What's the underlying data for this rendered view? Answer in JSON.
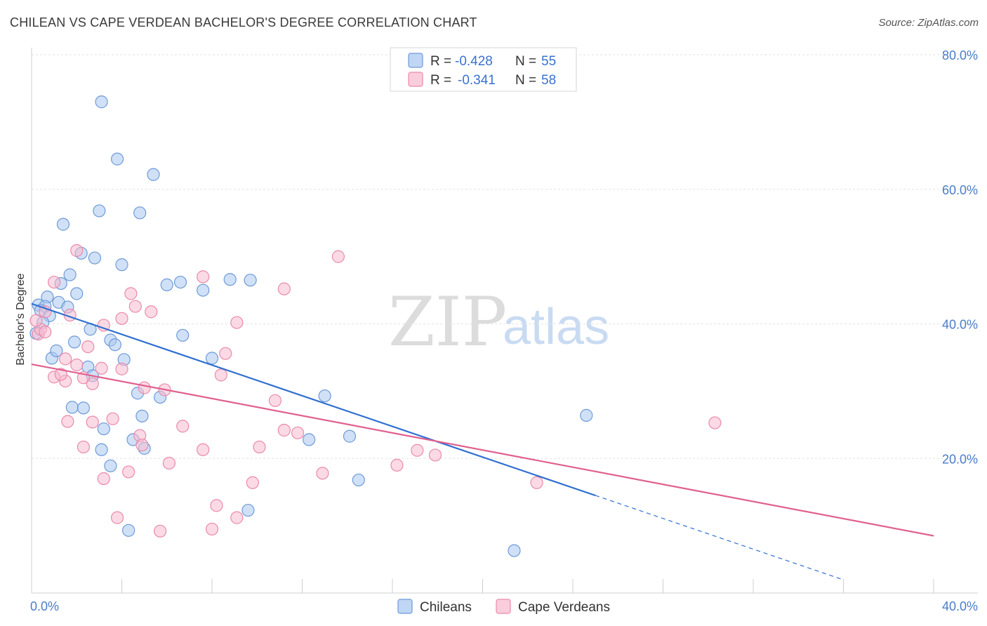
{
  "title": "CHILEAN VS CAPE VERDEAN BACHELOR'S DEGREE CORRELATION CHART",
  "source": "Source: ZipAtlas.com",
  "watermark": {
    "zip": "ZIP",
    "atlas": "atlas"
  },
  "colors": {
    "chileans_fill": "#aac8f0",
    "chileans_stroke": "#6f9ad6",
    "chileans_line": "#2f6fd0",
    "cape_fill": "#f7bcd0",
    "cape_stroke": "#e98aaa",
    "cape_line": "#e0608e",
    "tick_label": "#4a7cc9",
    "grid": "#e2e2e2"
  },
  "stats_legend": [
    {
      "r_label": "R =",
      "r_value": "-0.428",
      "n_label": "N =",
      "n_value": "55"
    },
    {
      "r_label": "R =",
      "r_value": "-0.341",
      "n_label": "N =",
      "n_value": "58"
    }
  ],
  "chart_data": {
    "type": "scatter",
    "title": "CHILEAN VS CAPE VERDEAN BACHELOR'S DEGREE CORRELATION CHART",
    "xlabel": "",
    "ylabel": "Bachelor's Degree",
    "xlim": [
      0,
      40
    ],
    "ylim": [
      0,
      80
    ],
    "x_tick_labels": [
      "0.0%",
      "40.0%"
    ],
    "y_ticks": [
      20,
      40,
      60,
      80
    ],
    "y_tick_labels": [
      "20.0%",
      "40.0%",
      "60.0%",
      "80.0%"
    ],
    "grid": true,
    "legend_position": "top-center",
    "series": [
      {
        "name": "Chileans",
        "r": -0.428,
        "n": 55,
        "trend": {
          "x0": 0.0,
          "y0": 43.0,
          "x1": 25.0,
          "y1": 14.5,
          "dashed_to_x": 36.0
        },
        "points": [
          [
            3.1,
            73.0
          ],
          [
            3.8,
            64.5
          ],
          [
            5.4,
            62.2
          ],
          [
            3.0,
            56.8
          ],
          [
            4.8,
            56.5
          ],
          [
            1.4,
            54.8
          ],
          [
            2.2,
            50.5
          ],
          [
            2.8,
            49.8
          ],
          [
            4.0,
            48.8
          ],
          [
            1.7,
            47.3
          ],
          [
            1.3,
            46.0
          ],
          [
            6.0,
            45.8
          ],
          [
            6.6,
            46.2
          ],
          [
            8.8,
            46.6
          ],
          [
            9.7,
            46.5
          ],
          [
            7.6,
            45.0
          ],
          [
            2.0,
            44.5
          ],
          [
            0.7,
            44.0
          ],
          [
            0.3,
            42.8
          ],
          [
            1.2,
            43.2
          ],
          [
            0.6,
            42.6
          ],
          [
            0.4,
            42.0
          ],
          [
            1.6,
            42.5
          ],
          [
            0.8,
            41.2
          ],
          [
            0.5,
            40.2
          ],
          [
            2.6,
            39.2
          ],
          [
            6.7,
            38.3
          ],
          [
            3.5,
            37.6
          ],
          [
            1.9,
            37.3
          ],
          [
            3.7,
            36.9
          ],
          [
            0.2,
            38.6
          ],
          [
            0.9,
            34.9
          ],
          [
            4.1,
            34.7
          ],
          [
            8.0,
            34.9
          ],
          [
            2.5,
            33.6
          ],
          [
            2.7,
            32.3
          ],
          [
            4.7,
            29.7
          ],
          [
            5.7,
            29.1
          ],
          [
            13.0,
            29.3
          ],
          [
            1.8,
            27.6
          ],
          [
            2.3,
            27.5
          ],
          [
            4.9,
            26.3
          ],
          [
            24.6,
            26.4
          ],
          [
            3.2,
            24.4
          ],
          [
            4.5,
            22.8
          ],
          [
            12.3,
            22.8
          ],
          [
            14.1,
            23.3
          ],
          [
            3.1,
            21.3
          ],
          [
            5.0,
            21.5
          ],
          [
            3.5,
            18.9
          ],
          [
            14.5,
            16.8
          ],
          [
            9.6,
            12.3
          ],
          [
            4.3,
            9.3
          ],
          [
            21.4,
            6.3
          ],
          [
            1.1,
            36.0
          ]
        ]
      },
      {
        "name": "Cape Verdeans",
        "r": -0.341,
        "n": 58,
        "trend": {
          "x0": 0.0,
          "y0": 34.0,
          "x1": 40.0,
          "y1": 8.5
        },
        "points": [
          [
            0.3,
            38.5
          ],
          [
            2.0,
            50.9
          ],
          [
            13.6,
            50.0
          ],
          [
            7.6,
            47.0
          ],
          [
            1.0,
            46.2
          ],
          [
            11.2,
            45.2
          ],
          [
            4.4,
            44.5
          ],
          [
            4.6,
            42.6
          ],
          [
            5.3,
            41.8
          ],
          [
            1.7,
            41.3
          ],
          [
            0.6,
            41.8
          ],
          [
            4.0,
            40.8
          ],
          [
            3.2,
            39.8
          ],
          [
            9.1,
            40.2
          ],
          [
            0.4,
            39.2
          ],
          [
            0.6,
            38.8
          ],
          [
            2.5,
            36.6
          ],
          [
            8.6,
            35.6
          ],
          [
            1.5,
            34.8
          ],
          [
            2.0,
            33.9
          ],
          [
            3.1,
            33.4
          ],
          [
            4.0,
            33.3
          ],
          [
            8.4,
            32.4
          ],
          [
            1.0,
            32.1
          ],
          [
            1.5,
            31.5
          ],
          [
            2.3,
            32.0
          ],
          [
            2.7,
            31.1
          ],
          [
            5.0,
            30.5
          ],
          [
            5.9,
            30.2
          ],
          [
            1.3,
            32.5
          ],
          [
            10.8,
            28.6
          ],
          [
            1.6,
            25.5
          ],
          [
            2.7,
            25.4
          ],
          [
            3.6,
            25.9
          ],
          [
            6.7,
            24.8
          ],
          [
            11.2,
            24.2
          ],
          [
            11.8,
            23.8
          ],
          [
            4.8,
            23.4
          ],
          [
            30.3,
            25.3
          ],
          [
            4.9,
            22.0
          ],
          [
            2.3,
            21.7
          ],
          [
            7.6,
            21.3
          ],
          [
            10.1,
            21.7
          ],
          [
            17.1,
            21.2
          ],
          [
            17.9,
            20.5
          ],
          [
            6.1,
            19.3
          ],
          [
            16.2,
            19.0
          ],
          [
            4.3,
            18.0
          ],
          [
            12.9,
            17.8
          ],
          [
            3.2,
            17.0
          ],
          [
            9.8,
            16.4
          ],
          [
            22.4,
            16.4
          ],
          [
            8.2,
            13.0
          ],
          [
            3.8,
            11.2
          ],
          [
            9.1,
            11.2
          ],
          [
            5.7,
            9.2
          ],
          [
            8.0,
            9.5
          ],
          [
            0.2,
            40.5
          ]
        ]
      }
    ]
  }
}
